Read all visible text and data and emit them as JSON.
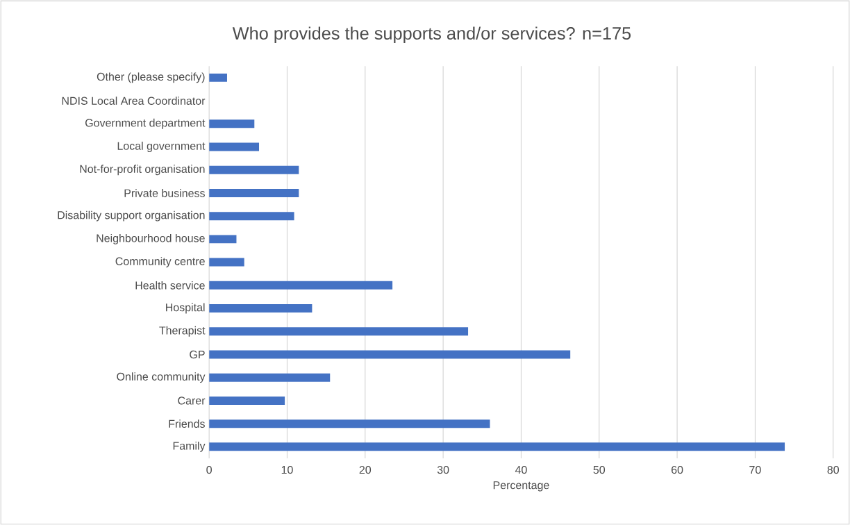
{
  "chart_data": {
    "type": "bar",
    "orientation": "horizontal",
    "title": "Who provides the supports and/or services? n=175",
    "xlabel": "Percentage",
    "categories": [
      "Other (please specify)",
      "NDIS Local Area Coordinator",
      "Government department",
      "Local government",
      "Not-for-profit organisation",
      "Private business",
      "Disability support organisation",
      "Neighbourhood house",
      "Community centre",
      "Health service",
      "Hospital",
      "Therapist",
      "GP",
      "Online community",
      "Carer",
      "Friends",
      "Family"
    ],
    "values": [
      2.3,
      0,
      5.8,
      6.4,
      11.5,
      11.5,
      10.9,
      3.5,
      4.5,
      23.5,
      13.2,
      33.2,
      46.3,
      15.5,
      9.7,
      36.0,
      73.8
    ],
    "color": "#4472c4",
    "xlim": [
      0,
      80
    ],
    "xticks": [
      0,
      10,
      20,
      30,
      40,
      50,
      60,
      70,
      80
    ],
    "grid": "x"
  }
}
